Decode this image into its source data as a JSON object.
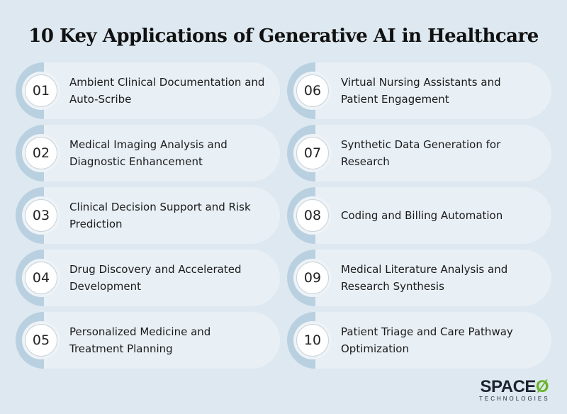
{
  "title": "10 Key Applications of Generative AI in Healthcare",
  "items": [
    {
      "num": "01",
      "label": "Ambient Clinical Documentation and Auto-Scribe"
    },
    {
      "num": "02",
      "label": "Medical Imaging Analysis and Diagnostic Enhancement"
    },
    {
      "num": "03",
      "label": "Clinical Decision Support and Risk Prediction"
    },
    {
      "num": "04",
      "label": "Drug Discovery and Accelerated Development"
    },
    {
      "num": "05",
      "label": "Personalized Medicine and Treatment Planning"
    },
    {
      "num": "06",
      "label": "Virtual Nursing Assistants and Patient Engagement"
    },
    {
      "num": "07",
      "label": "Synthetic Data Generation for Research"
    },
    {
      "num": "08",
      "label": "Coding and Billing Automation"
    },
    {
      "num": "09",
      "label": "Medical Literature Analysis and Research Synthesis"
    },
    {
      "num": "10",
      "label": "Patient Triage and Care Pathway Optimization"
    }
  ],
  "logo": {
    "name": "SPACE",
    "mark": "Ø",
    "sub": "TECHNOLOGIES"
  },
  "colors": {
    "background": "#dde8f0",
    "card": "#e8eff5",
    "arc": "#b9d0e0",
    "logo_accent": "#6bb42a"
  }
}
